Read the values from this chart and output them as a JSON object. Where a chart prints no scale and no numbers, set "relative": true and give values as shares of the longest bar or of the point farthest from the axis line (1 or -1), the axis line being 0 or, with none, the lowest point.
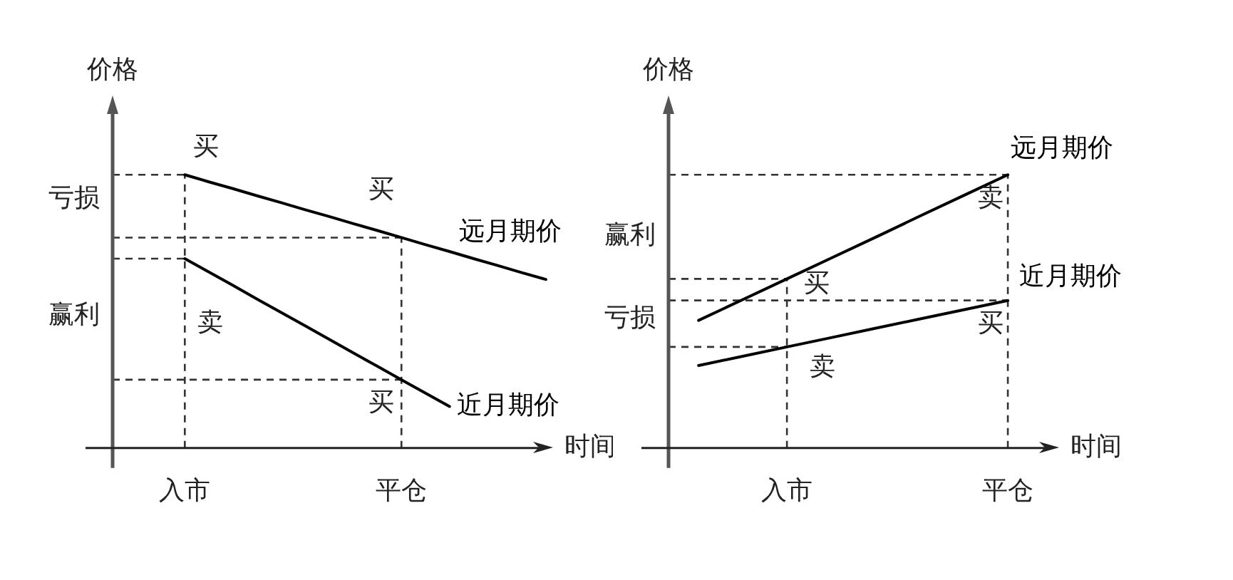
{
  "chart_data": [
    {
      "type": "line",
      "relative": true,
      "xlabel": "时间",
      "ylabel": "价格",
      "categories": [
        null,
        null,
        null,
        "入市",
        null,
        null,
        null,
        null,
        null,
        null,
        null,
        null,
        "平仓",
        null,
        null,
        null,
        null,
        null,
        null
      ],
      "marker": "none",
      "series": [
        {
          "name": "远月期价",
          "color": "#000000",
          "values": [
            null,
            null,
            null,
            1,
            0.974,
            0.949,
            0.923,
            0.898,
            0.872,
            0.847,
            0.821,
            0.796,
            0.77,
            0.744,
            0.719,
            0.693,
            0.668,
            0.642,
            0.617
          ]
        },
        {
          "name": "近月期价",
          "color": "#000000",
          "values": [
            null,
            null,
            null,
            0.693,
            0.644,
            0.595,
            0.545,
            0.496,
            0.447,
            0.398,
            0.348,
            0.299,
            0.25,
            0.201,
            0.152,
            null,
            null,
            null,
            null
          ]
        }
      ],
      "ref_lines": [
        {
          "axis": "x",
          "value": "入市",
          "color": "#333333",
          "line_style": "dashed"
        },
        {
          "axis": "x",
          "value": "平仓",
          "color": "#333333",
          "line_style": "dashed"
        },
        {
          "axis": "y",
          "value": 1,
          "color": "#333333",
          "line_style": "dashed"
        },
        {
          "axis": "y",
          "value": 0.77,
          "color": "#333333",
          "line_style": "dashed"
        },
        {
          "axis": "y",
          "value": 0.693,
          "color": "#333333",
          "line_style": "dashed"
        },
        {
          "axis": "y",
          "value": 0.25,
          "color": "#333333",
          "line_style": "dashed"
        }
      ],
      "annotations": [
        {
          "text": "买",
          "x": "入市",
          "y": 1
        },
        {
          "text": "买",
          "x": "平仓",
          "y": 0.77
        },
        {
          "text": "卖",
          "x": "入市",
          "y": 0.693
        },
        {
          "text": "买",
          "x": "平仓",
          "y": 0.25
        },
        "亏损",
        "赢利"
      ]
    },
    {
      "type": "line",
      "relative": true,
      "xlabel": "时间",
      "ylabel": "价格",
      "categories": [
        null,
        null,
        "入市",
        null,
        null,
        null,
        null,
        "平仓"
      ],
      "marker": "none",
      "series": [
        {
          "name": "远月期价",
          "color": "#000000",
          "values": [
            0.467,
            0.543,
            0.619,
            0.695,
            0.771,
            0.848,
            0.924,
            1
          ]
        },
        {
          "name": "近月期价",
          "color": "#000000",
          "values": [
            0.302,
            0.336,
            0.37,
            0.404,
            0.438,
            0.472,
            0.506,
            0.54
          ]
        }
      ],
      "ref_lines": [
        {
          "axis": "x",
          "value": "入市",
          "color": "#333333",
          "line_style": "dashed"
        },
        {
          "axis": "x",
          "value": "平仓",
          "color": "#333333",
          "line_style": "dashed"
        },
        {
          "axis": "y",
          "value": 1,
          "color": "#333333",
          "line_style": "dashed"
        },
        {
          "axis": "y",
          "value": 0.619,
          "color": "#333333",
          "line_style": "dashed"
        },
        {
          "axis": "y",
          "value": 0.54,
          "color": "#333333",
          "line_style": "dashed"
        },
        {
          "axis": "y",
          "value": 0.37,
          "color": "#333333",
          "line_style": "dashed"
        }
      ],
      "annotations": [
        {
          "text": "买",
          "x": "入市",
          "y": 0.619
        },
        {
          "text": "卖",
          "x": "入市",
          "y": 0.37
        },
        {
          "text": "卖",
          "x": "平仓",
          "y": 1
        },
        {
          "text": "买",
          "x": "平仓",
          "y": 0.54
        },
        "赢利",
        "亏损"
      ]
    }
  ]
}
